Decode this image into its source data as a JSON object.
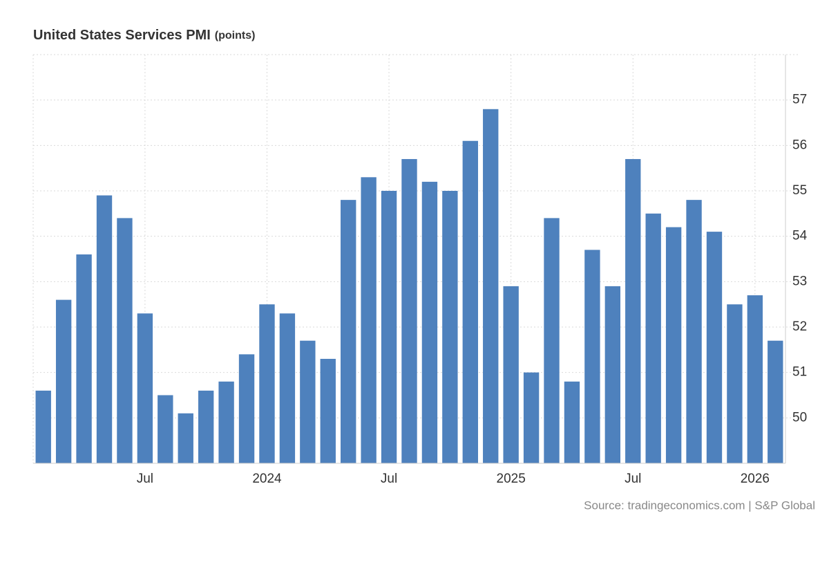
{
  "chart_data": {
    "type": "bar",
    "title": "United States Services PMI",
    "unit": "(points)",
    "source": "Source: tradingeconomics.com | S&P Global",
    "categories": [
      null,
      null,
      null,
      null,
      null,
      "Jul",
      null,
      null,
      null,
      null,
      null,
      "2024",
      null,
      null,
      null,
      null,
      null,
      "Jul",
      null,
      null,
      null,
      null,
      null,
      "2025",
      null,
      null,
      null,
      null,
      null,
      "Jul",
      null,
      null,
      null,
      null,
      null,
      "2026",
      null
    ],
    "values": [
      50.6,
      52.6,
      53.6,
      54.9,
      54.4,
      52.3,
      50.5,
      50.1,
      50.6,
      50.8,
      51.4,
      52.5,
      52.3,
      51.7,
      51.3,
      54.8,
      55.3,
      55.0,
      55.7,
      55.2,
      55.0,
      56.1,
      56.8,
      52.9,
      51.0,
      54.4,
      50.8,
      53.7,
      52.9,
      55.7,
      54.5,
      54.2,
      54.8,
      54.1,
      52.5,
      52.7,
      51.7
    ],
    "color": "#4e81bd",
    "ylim": [
      49,
      58
    ],
    "yticks": [
      50,
      51,
      52,
      53,
      54,
      55,
      56,
      57
    ],
    "grid": true
  }
}
